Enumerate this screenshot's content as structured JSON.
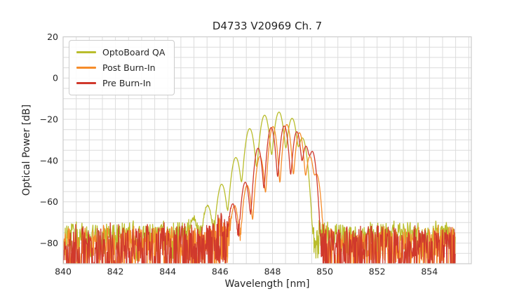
{
  "chart_data": {
    "type": "line",
    "title": "D4733 V20969 Ch. 7",
    "xlabel": "Wavelength [nm]",
    "ylabel": "Optical Power [dB]",
    "xlim": [
      840,
      855.6
    ],
    "ylim": [
      -90,
      20
    ],
    "data_range": [
      840,
      855
    ],
    "xticks": [
      840,
      842,
      844,
      846,
      848,
      850,
      852,
      854
    ],
    "yticks": [
      20,
      0,
      -20,
      -40,
      -60,
      -80
    ],
    "grid": {
      "visible": true,
      "x_step": 0.5,
      "y_step": 5,
      "color": "#dcdcdc",
      "frame_color": "#cccccc"
    },
    "legend": {
      "position": "upper-left"
    },
    "series": [
      {
        "name": "OptoBoard QA",
        "color": "#b9bd2c",
        "noise_floor_db": -71,
        "noise_spike_depth_db": 16,
        "mode_width_nm": 0.12,
        "floor_bump": null,
        "seed": 101,
        "modes": [
          [
            844.98,
            -69.0
          ],
          [
            845.52,
            -62.0
          ],
          [
            846.06,
            -51.5
          ],
          [
            846.6,
            -38.5
          ],
          [
            847.13,
            -24.5
          ],
          [
            847.7,
            -18.0
          ],
          [
            848.25,
            -16.5
          ],
          [
            848.75,
            -19.5
          ],
          [
            849.14,
            -29.0
          ]
        ]
      },
      {
        "name": "Post Burn-In",
        "color": "#f68c2a",
        "noise_floor_db": -73.5,
        "noise_spike_depth_db": 24,
        "mode_width_nm": 0.1,
        "floor_bump": {
          "center": 846.1,
          "amp": 6,
          "width": 0.32
        },
        "seed": 202,
        "modes": [
          [
            846.55,
            -62.0
          ],
          [
            847.03,
            -52.0
          ],
          [
            847.52,
            -38.0
          ],
          [
            848.02,
            -23.5
          ],
          [
            848.55,
            -22.5
          ],
          [
            849.03,
            -26.5
          ],
          [
            849.43,
            -38.0
          ],
          [
            849.68,
            -46.5
          ]
        ]
      },
      {
        "name": "Pre Burn-In",
        "color": "#d0392c",
        "noise_floor_db": -72.5,
        "noise_spike_depth_db": 28,
        "mode_width_nm": 0.1,
        "floor_bump": {
          "center": 845.95,
          "amp": 6,
          "width": 0.32
        },
        "seed": 303,
        "modes": [
          [
            846.48,
            -61.0
          ],
          [
            846.96,
            -50.5
          ],
          [
            847.45,
            -34.0
          ],
          [
            847.95,
            -24.0
          ],
          [
            848.45,
            -23.2
          ],
          [
            848.93,
            -26.0
          ],
          [
            849.28,
            -33.0
          ],
          [
            849.52,
            -35.5
          ]
        ]
      }
    ]
  }
}
